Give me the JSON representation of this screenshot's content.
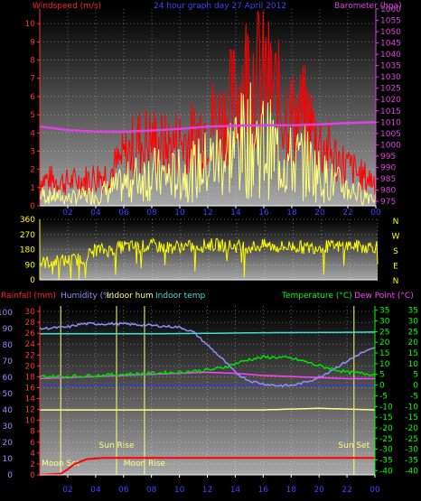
{
  "chart_data": [
    {
      "type": "line",
      "title": "24 hour graph day  27 April 2012",
      "left_axis_label": "Windspeed (m/s)",
      "right_axis_label": "Barometer (hpa)",
      "x_ticks": [
        "02",
        "04",
        "06",
        "08",
        "10",
        "12",
        "14",
        "16",
        "18",
        "20",
        "22",
        "00"
      ],
      "left_ticks": [
        "0",
        "1",
        "2",
        "3",
        "4",
        "5",
        "6",
        "7",
        "8",
        "9",
        "10"
      ],
      "ylim_left": [
        0,
        10.8
      ],
      "right_ticks": [
        "975",
        "980",
        "985",
        "990",
        "995",
        "1000",
        "1005",
        "1010",
        "1015",
        "1020",
        "1025",
        "1030",
        "1035",
        "1040",
        "1045",
        "1050",
        "1055",
        "1060"
      ],
      "ylim_right": [
        973,
        1060
      ],
      "series": [
        {
          "key": "gust",
          "color": "#ff0000",
          "axis": "left",
          "x": [
            0,
            1,
            2,
            3,
            4,
            5,
            6,
            7,
            8,
            9,
            10,
            11,
            12,
            13,
            14,
            15,
            16,
            17,
            18,
            19,
            20,
            21,
            22,
            23,
            24
          ],
          "y": [
            1.5,
            1.4,
            1.3,
            1.4,
            1.6,
            1.8,
            2.6,
            3.5,
            3.6,
            3.2,
            3.5,
            3.7,
            4.6,
            4.7,
            6.0,
            7.5,
            7.0,
            5.8,
            4.8,
            4.9,
            3.5,
            2.7,
            2.1,
            1.6,
            1.4
          ]
        },
        {
          "key": "speed",
          "color": "#ffff80",
          "axis": "left",
          "x": [
            0,
            1,
            2,
            3,
            4,
            5,
            6,
            7,
            8,
            9,
            10,
            11,
            12,
            13,
            14,
            15,
            16,
            17,
            18,
            19,
            20,
            21,
            22,
            23,
            24
          ],
          "y": [
            0.6,
            0.5,
            0.4,
            0.5,
            0.6,
            0.8,
            1.1,
            1.5,
            1.7,
            1.5,
            1.6,
            1.8,
            2.2,
            2.5,
            3.0,
            3.4,
            3.2,
            2.7,
            2.2,
            2.3,
            1.6,
            1.2,
            0.9,
            0.6,
            0.5
          ]
        },
        {
          "key": "pressure",
          "color": "#e040e0",
          "axis": "right",
          "x": [
            0,
            2,
            4,
            6,
            8,
            10,
            12,
            14,
            16,
            18,
            20,
            22,
            24
          ],
          "y": [
            1008,
            1006.5,
            1005.8,
            1005.8,
            1006.3,
            1007,
            1008,
            1008.4,
            1008.6,
            1008.6,
            1009,
            1009.6,
            1010
          ]
        }
      ]
    },
    {
      "type": "line",
      "left_ticks": [
        "0",
        "90",
        "180",
        "270",
        "360"
      ],
      "ylim": [
        0,
        360
      ],
      "compass_labels": [
        "N",
        "W",
        "S",
        "E",
        "N"
      ],
      "series": [
        {
          "key": "direction",
          "color": "#ffff00",
          "x": [
            0,
            1,
            2,
            3,
            4,
            5,
            6,
            7,
            8,
            9,
            10,
            11,
            12,
            13,
            14,
            15,
            16,
            17,
            18,
            19,
            20,
            21,
            22,
            23,
            24
          ],
          "y": [
            100,
            110,
            115,
            125,
            180,
            175,
            200,
            195,
            205,
            190,
            200,
            195,
            210,
            205,
            200,
            195,
            205,
            195,
            200,
            190,
            200,
            195,
            205,
            195,
            200
          ]
        }
      ]
    },
    {
      "type": "line",
      "labels": {
        "rain": "Rainfall (mm)",
        "humidity": "Humidity (%)",
        "indoor_hum": "Indoor hum",
        "indoor_temp": "Indoor temp",
        "temperature": "Temperature (°C)",
        "dew_point": "Dew Point (°C)"
      },
      "annotations": [
        "Moon Set",
        "Sun Rise",
        "Moon Rise",
        "Sun Set"
      ],
      "x_ticks": [
        "02",
        "04",
        "06",
        "08",
        "10",
        "12",
        "14",
        "16",
        "18",
        "20",
        "22",
        "00"
      ],
      "humidity_ticks": [
        "0",
        "10",
        "20",
        "30",
        "40",
        "50",
        "60",
        "70",
        "80",
        "90",
        "100"
      ],
      "rain_ticks": [
        "0",
        "2",
        "4",
        "6",
        "8",
        "10",
        "12",
        "14",
        "16",
        "18",
        "20",
        "22",
        "24",
        "26",
        "28",
        "30"
      ],
      "temp_ticks": [
        "-40",
        "-35",
        "-30",
        "-25",
        "-20",
        "-15",
        "-10",
        "-5",
        "0",
        "5",
        "10",
        "15",
        "20",
        "25",
        "30",
        "35"
      ],
      "dew_ticks": [
        "-40",
        "-35",
        "-30",
        "-25",
        "-20",
        "-15",
        "-10",
        "-5",
        "0",
        "5",
        "10",
        "15",
        "20",
        "25",
        "30",
        "35"
      ],
      "series": [
        {
          "key": "rain",
          "color": "#ff0000",
          "x": [
            0,
            1.5,
            2,
            2.5,
            3,
            3.4,
            4,
            4.5,
            5,
            24
          ],
          "y": [
            0,
            0.2,
            1,
            2,
            2.5,
            2.9,
            3,
            3.1,
            3.1,
            3.1
          ]
        },
        {
          "key": "humidity",
          "color": "#9090ff",
          "x": [
            0,
            2,
            3,
            6,
            8,
            10,
            11,
            12,
            13,
            14,
            15,
            16,
            17,
            18,
            19,
            20,
            21,
            22,
            23,
            24
          ],
          "y": [
            90,
            91,
            93,
            93,
            92,
            91,
            88,
            80,
            72,
            63,
            58,
            56,
            55,
            55,
            57,
            60,
            65,
            70,
            75,
            78
          ]
        },
        {
          "key": "indoor_hum",
          "color": "#ffff80",
          "x": [
            0,
            4,
            8,
            12,
            16,
            20,
            24
          ],
          "y": [
            40,
            40,
            40,
            40,
            40,
            41,
            40
          ]
        },
        {
          "key": "indoor_temp",
          "color": "#40e0d0",
          "x": [
            0,
            4,
            8,
            12,
            16,
            20,
            24
          ],
          "y": [
            24,
            24,
            24,
            24.2,
            24.5,
            24.6,
            24.8
          ]
        },
        {
          "key": "temperature",
          "color": "#00e000",
          "x": [
            0,
            2,
            4,
            6,
            8,
            10,
            12,
            13,
            14,
            15,
            16,
            17,
            18,
            19,
            20,
            21,
            22,
            23,
            24
          ],
          "y": [
            4,
            4,
            4.5,
            5,
            5.5,
            6,
            7,
            8,
            10,
            12,
            13,
            13,
            12.5,
            11,
            9,
            7.5,
            6,
            5.5,
            5
          ]
        },
        {
          "key": "dew_point",
          "color": "#ff40ff",
          "x": [
            0,
            2,
            4,
            6,
            8,
            10,
            12,
            14,
            16,
            18,
            20,
            22,
            24
          ],
          "y": [
            3,
            3.5,
            4,
            4.5,
            5,
            5.5,
            6,
            5.5,
            4.5,
            4,
            3.5,
            3,
            3
          ]
        }
      ]
    }
  ]
}
